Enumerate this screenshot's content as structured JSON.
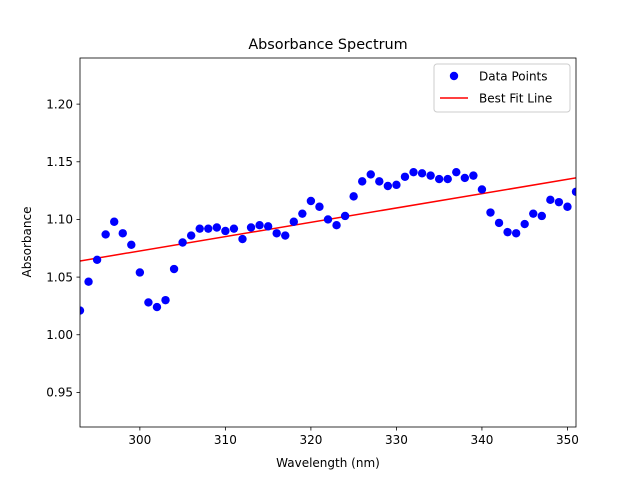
{
  "chart_data": {
    "type": "scatter",
    "title": "Absorbance Spectrum",
    "xlabel": "Wavelength (nm)",
    "ylabel": "Absorbance",
    "xlim": [
      293,
      351
    ],
    "ylim": [
      0.92,
      1.24
    ],
    "xticks": [
      300,
      310,
      320,
      330,
      340,
      350
    ],
    "xtick_labels": [
      "300",
      "310",
      "320",
      "330",
      "340",
      "350"
    ],
    "yticks": [
      0.95,
      1.0,
      1.05,
      1.1,
      1.15,
      1.2
    ],
    "ytick_labels": [
      "0.95",
      "1.00",
      "1.05",
      "1.10",
      "1.15",
      "1.20"
    ],
    "grid": false,
    "legend_position": "top-right",
    "series": [
      {
        "name": "Data Points",
        "type": "scatter",
        "color": "#0000ff",
        "x": [
          293,
          294,
          295,
          296,
          297,
          298,
          299,
          300,
          301,
          302,
          303,
          304,
          305,
          306,
          307,
          308,
          309,
          310,
          311,
          312,
          313,
          314,
          315,
          316,
          317,
          318,
          319,
          320,
          321,
          322,
          323,
          324,
          325,
          326,
          327,
          328,
          329,
          330,
          331,
          332,
          333,
          334,
          335,
          336,
          337,
          338,
          339,
          340,
          341,
          342,
          343,
          344,
          345,
          346,
          347,
          348,
          349,
          350,
          351
        ],
        "y": [
          1.021,
          1.046,
          1.065,
          1.087,
          1.098,
          1.088,
          1.078,
          1.054,
          1.028,
          1.024,
          1.03,
          1.057,
          1.08,
          1.086,
          1.092,
          1.092,
          1.093,
          1.09,
          1.092,
          1.083,
          1.093,
          1.095,
          1.094,
          1.088,
          1.086,
          1.098,
          1.105,
          1.116,
          1.111,
          1.1,
          1.095,
          1.103,
          1.12,
          1.133,
          1.139,
          1.133,
          1.129,
          1.13,
          1.137,
          1.141,
          1.14,
          1.138,
          1.135,
          1.135,
          1.141,
          1.136,
          1.138,
          1.126,
          1.106,
          1.097,
          1.089,
          1.088,
          1.096,
          1.105,
          1.103,
          1.117,
          1.115,
          1.111,
          1.124
        ]
      },
      {
        "name": "Best Fit Line",
        "type": "line",
        "color": "#ff0000",
        "x": [
          293,
          351
        ],
        "y": [
          1.064,
          1.136
        ]
      }
    ]
  }
}
